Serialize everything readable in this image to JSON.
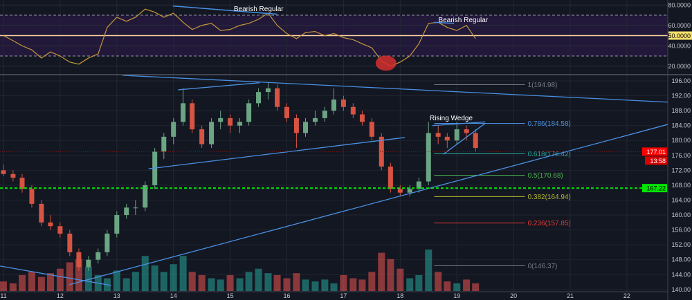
{
  "chart_data": [
    {
      "type": "line",
      "pane": "oscillator",
      "ylim": [
        15,
        82
      ],
      "y_ticks": [
        "20.0000",
        "40.0000",
        "60.0000",
        "80.0000"
      ],
      "midline_label": "50.0000",
      "band": [
        30,
        70
      ],
      "x": [
        11.0,
        11.17,
        11.33,
        11.5,
        11.67,
        11.83,
        12.0,
        12.17,
        12.33,
        12.5,
        12.67,
        12.83,
        13.0,
        13.17,
        13.33,
        13.5,
        13.67,
        13.83,
        14.0,
        14.17,
        14.33,
        14.5,
        14.67,
        14.83,
        15.0,
        15.17,
        15.33,
        15.5,
        15.67,
        15.83,
        16.0,
        16.17,
        16.33,
        16.5,
        16.67,
        16.83,
        17.0,
        17.17,
        17.33,
        17.5,
        17.67,
        17.83,
        18.0,
        18.17,
        18.33,
        18.5,
        18.67,
        18.83,
        19.0,
        19.17,
        19.33
      ],
      "values": [
        50,
        45,
        40,
        36,
        28,
        34,
        30,
        24,
        22,
        28,
        32,
        58,
        68,
        64,
        68,
        76,
        73,
        68,
        72,
        63,
        56,
        60,
        62,
        55,
        56,
        60,
        62,
        66,
        72,
        60,
        52,
        47,
        53,
        54,
        50,
        52,
        48,
        46,
        42,
        38,
        25,
        20,
        24,
        30,
        42,
        62,
        63,
        58,
        55,
        60,
        47
      ],
      "annotations": [
        {
          "text": "Bearish Regular",
          "line": [
            [
              13.99,
              79
            ],
            [
              15.83,
              71
            ]
          ]
        },
        {
          "text": "Bearish Regular",
          "line": [
            [
              18.6,
              63
            ],
            [
              18.95,
              62
            ]
          ]
        }
      ],
      "highlight_circle": {
        "x": 17.75,
        "y": 23,
        "color": "#d32f2f"
      }
    },
    {
      "type": "candlestick",
      "pane": "price",
      "ylim": [
        139,
        198
      ],
      "xlim": [
        11,
        23
      ],
      "x_ticks": [
        "11",
        "12",
        "13",
        "14",
        "15",
        "16",
        "17",
        "18",
        "19",
        "20",
        "21",
        "22"
      ],
      "y_ticks": [
        "140.00",
        "144.00",
        "148.00",
        "152.00",
        "156.00",
        "160.00",
        "164.00",
        "168.00",
        "172.00",
        "176.00",
        "180.00",
        "184.00",
        "188.00",
        "192.00",
        "196.00"
      ],
      "x": [
        11.0,
        11.17,
        11.33,
        11.5,
        11.67,
        11.83,
        12.0,
        12.17,
        12.33,
        12.5,
        12.67,
        12.83,
        13.0,
        13.17,
        13.33,
        13.5,
        13.67,
        13.83,
        14.0,
        14.17,
        14.33,
        14.5,
        14.67,
        14.83,
        15.0,
        15.17,
        15.33,
        15.5,
        15.67,
        15.83,
        16.0,
        16.17,
        16.33,
        16.5,
        16.67,
        16.83,
        17.0,
        17.17,
        17.33,
        17.5,
        17.67,
        17.83,
        18.0,
        18.17,
        18.33,
        18.5,
        18.67,
        18.83,
        19.0,
        19.17,
        19.33
      ],
      "ohlc": [
        [
          172,
          173.5,
          170.5,
          171
        ],
        [
          171,
          172,
          169,
          170
        ],
        [
          170,
          171,
          166,
          167
        ],
        [
          167,
          168,
          162,
          163
        ],
        [
          163,
          164,
          157,
          158
        ],
        [
          158,
          160,
          156,
          157
        ],
        [
          157,
          158,
          154,
          155
        ],
        [
          155,
          156,
          149,
          150
        ],
        [
          150,
          151,
          145,
          146
        ],
        [
          146,
          149,
          145,
          148
        ],
        [
          148,
          151,
          147,
          150
        ],
        [
          150,
          156,
          149,
          155
        ],
        [
          155,
          161,
          154,
          160
        ],
        [
          160,
          163,
          159,
          162
        ],
        [
          162,
          164,
          160,
          162
        ],
        [
          162,
          169,
          161,
          168
        ],
        [
          168,
          178,
          167,
          177
        ],
        [
          177,
          182,
          175,
          181
        ],
        [
          181,
          186,
          179,
          185
        ],
        [
          185,
          194,
          184,
          190
        ],
        [
          190,
          191,
          182,
          183
        ],
        [
          183,
          184,
          178,
          179
        ],
        [
          179,
          186,
          178,
          185
        ],
        [
          185,
          188,
          183,
          186
        ],
        [
          186,
          187,
          182,
          184
        ],
        [
          184,
          186,
          182,
          185
        ],
        [
          185,
          191,
          184,
          190
        ],
        [
          190,
          194,
          189,
          193
        ],
        [
          193,
          195.5,
          191,
          194
        ],
        [
          194,
          195,
          188,
          189
        ],
        [
          189,
          190,
          185,
          186
        ],
        [
          186,
          187,
          178,
          182
        ],
        [
          182,
          186,
          181,
          185
        ],
        [
          185,
          188,
          184,
          186
        ],
        [
          186,
          189,
          185,
          188
        ],
        [
          188,
          194,
          187,
          191
        ],
        [
          191,
          192,
          188,
          189
        ],
        [
          189,
          190,
          186,
          187
        ],
        [
          187,
          188,
          184,
          185
        ],
        [
          185,
          186,
          180,
          181
        ],
        [
          181,
          182,
          172,
          173
        ],
        [
          173,
          174,
          166,
          167
        ],
        [
          167,
          168,
          165,
          166
        ],
        [
          166,
          168,
          165,
          167
        ],
        [
          167,
          170,
          166,
          169
        ],
        [
          169,
          185,
          168,
          182
        ],
        [
          182,
          184,
          179,
          181
        ],
        [
          181,
          182,
          178,
          180
        ],
        [
          180,
          185,
          179,
          183
        ],
        [
          183,
          184,
          180,
          182
        ],
        [
          182,
          183,
          177,
          178
        ]
      ],
      "volume": [
        1.5,
        1.2,
        2.5,
        3.0,
        2.2,
        2.8,
        3.5,
        4.5,
        5.0,
        3.8,
        2.5,
        2.0,
        3.2,
        2.0,
        3.0,
        5.5,
        4.0,
        3.0,
        4.2,
        5.5,
        3.0,
        2.5,
        2.0,
        1.8,
        2.5,
        2.0,
        3.0,
        3.5,
        2.8,
        2.5,
        2.0,
        2.8,
        1.8,
        1.5,
        1.8,
        1.2,
        2.5,
        2.0,
        1.8,
        3.0,
        6.0,
        5.0,
        3.5,
        2.0,
        2.5,
        6.5,
        3.0,
        1.5,
        1.2,
        1.8,
        1.2
      ],
      "colors": {
        "up": "#6ba583",
        "down": "#d75442",
        "vol_up": "#26a69a",
        "vol_down": "#ef5350",
        "drawing": "#4a90e2"
      },
      "last_price": {
        "label": "177.01",
        "countdown": "13:58",
        "value": 177.01,
        "color": "#ff0000"
      },
      "horizontal_line": {
        "label": "167.22",
        "value": 167.22,
        "color": "#00e600"
      },
      "trendlines": [
        [
          [
            13.1,
            197.5
          ],
          [
            22.72,
            190.3
          ]
        ],
        [
          [
            12.16,
            141.3
          ],
          [
            22.72,
            184.3
          ]
        ],
        [
          [
            10.94,
            146.3
          ],
          [
            12.9,
            141.1
          ]
        ],
        [
          [
            13.56,
            172.4
          ],
          [
            18.08,
            180.8
          ]
        ],
        [
          [
            14.08,
            193.6
          ],
          [
            15.52,
            195.5
          ]
        ],
        [
          [
            18.57,
            184.0
          ],
          [
            19.5,
            185.0
          ]
        ],
        [
          [
            18.76,
            176.3
          ],
          [
            19.5,
            184.6
          ]
        ]
      ],
      "pattern_label": {
        "text": "Rising Wedge",
        "x": 18.9,
        "y": 185.4
      },
      "fib_levels": [
        {
          "label": "1(194.98)",
          "value": 194.98,
          "color": "#787b86"
        },
        {
          "label": "0.786(184.58)",
          "value": 184.58,
          "color": "#4a90e2"
        },
        {
          "label": "0.618(176.42)",
          "value": 176.42,
          "color": "#26a69a"
        },
        {
          "label": "0.5(170.68)",
          "value": 170.68,
          "color": "#4caf50"
        },
        {
          "label": "0.382(164.94)",
          "value": 164.94,
          "color": "#b5b92a"
        },
        {
          "label": "0.236(157.85)",
          "value": 157.85,
          "color": "#e53935"
        },
        {
          "label": "0(146.37)",
          "value": 146.37,
          "color": "#787b86"
        }
      ]
    }
  ]
}
